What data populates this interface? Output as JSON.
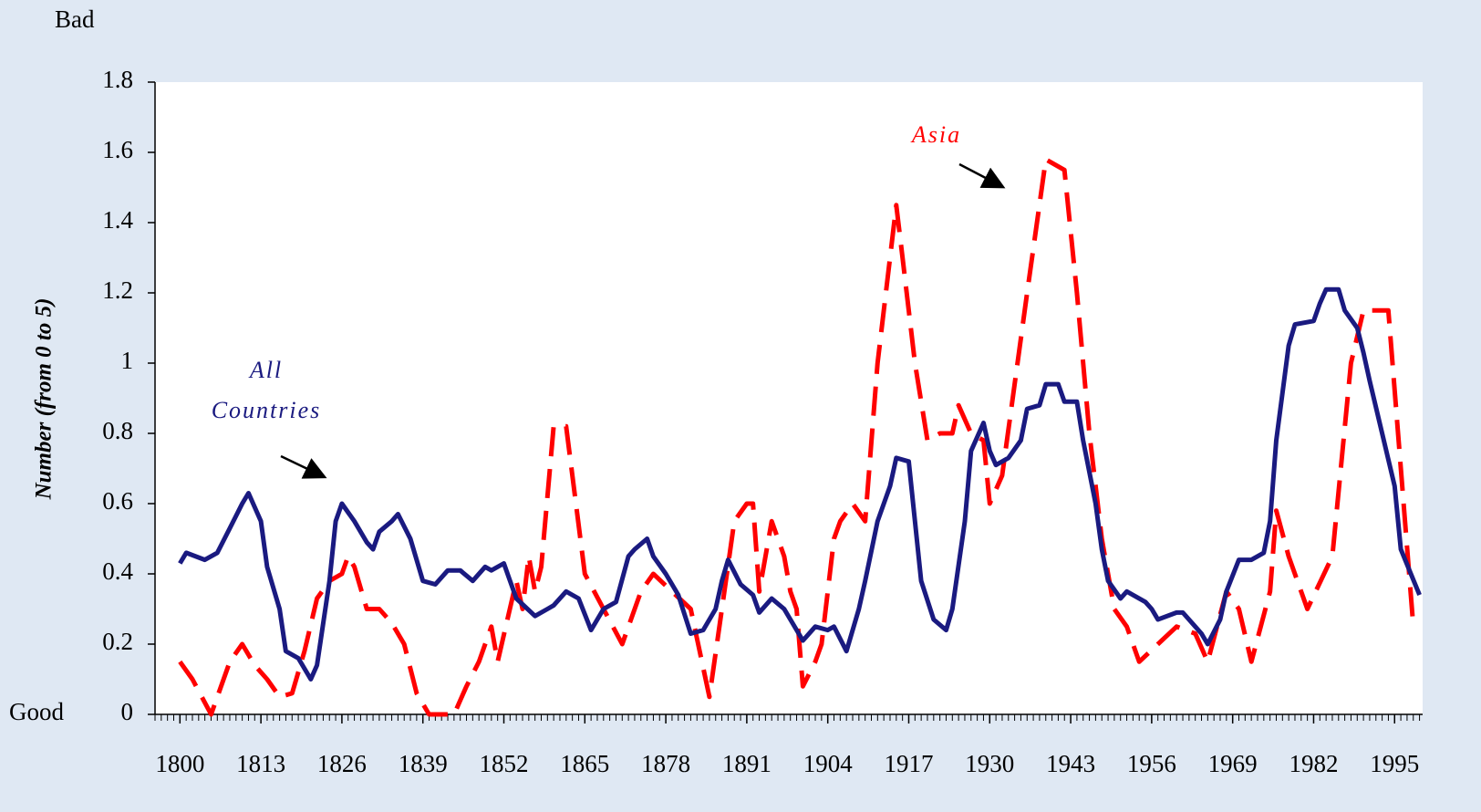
{
  "chart_data": {
    "type": "line",
    "y_axis_label": "Number (from 0 to 5)",
    "y_top_label": "Bad",
    "y_bottom_label": "Good",
    "annotations": [
      {
        "text": "Asia"
      },
      {
        "text": [
          "All",
          "Countries"
        ]
      }
    ],
    "xlim": [
      1796,
      1999.5
    ],
    "xticks": [
      1800,
      1813,
      1826,
      1839,
      1852,
      1865,
      1878,
      1891,
      1904,
      1917,
      1930,
      1943,
      1956,
      1969,
      1982,
      1995
    ],
    "ylim": [
      0,
      1.8
    ],
    "yticks": [
      0,
      0.2,
      0.4,
      0.6,
      0.8,
      1,
      1.2,
      1.4,
      1.6,
      1.8
    ],
    "series": [
      {
        "color": "#ff0000",
        "dashed": true,
        "x": [
          1800,
          1802,
          1805,
          1808,
          1810,
          1812,
          1814,
          1816,
          1818,
          1820,
          1822,
          1824,
          1826,
          1827,
          1828,
          1830,
          1832,
          1834,
          1836,
          1838,
          1840,
          1842,
          1844,
          1846,
          1848,
          1850,
          1851,
          1854,
          1855,
          1856,
          1857,
          1858,
          1860,
          1862,
          1865,
          1868,
          1871,
          1874,
          1876,
          1879,
          1882,
          1885,
          1887,
          1889,
          1891,
          1892,
          1893,
          1895,
          1897,
          1898,
          1899,
          1900,
          1902,
          1903,
          1905,
          1906,
          1908,
          1910,
          1912,
          1915,
          1916,
          1918,
          1920,
          1922,
          1924,
          1925,
          1927,
          1929,
          1930,
          1932,
          1936,
          1939,
          1942,
          1944,
          1946,
          1948,
          1950,
          1952,
          1954,
          1957,
          1960,
          1963,
          1965,
          1968,
          1970,
          1972,
          1975,
          1976,
          1978,
          1981,
          1985,
          1988,
          1990,
          1994,
          1998
        ],
        "values": [
          0.15,
          0.1,
          0,
          0.15,
          0.2,
          0.14,
          0.1,
          0.05,
          0.06,
          0.18,
          0.33,
          0.38,
          0.4,
          0.45,
          0.42,
          0.3,
          0.3,
          0.26,
          0.2,
          0.06,
          0,
          0,
          0,
          0.08,
          0.15,
          0.25,
          0.15,
          0.38,
          0.3,
          0.45,
          0.35,
          0.42,
          0.82,
          0.82,
          0.4,
          0.3,
          0.2,
          0.35,
          0.4,
          0.35,
          0.3,
          0.05,
          0.3,
          0.55,
          0.6,
          0.6,
          0.35,
          0.55,
          0.45,
          0.35,
          0.3,
          0.08,
          0.15,
          0.2,
          0.5,
          0.55,
          0.6,
          0.55,
          1.0,
          1.45,
          1.3,
          1.0,
          0.78,
          0.8,
          0.8,
          0.88,
          0.8,
          0.78,
          0.6,
          0.68,
          1.2,
          1.58,
          1.55,
          1.2,
          0.8,
          0.5,
          0.3,
          0.25,
          0.15,
          0.2,
          0.25,
          0.23,
          0.15,
          0.35,
          0.3,
          0.15,
          0.35,
          0.58,
          0.45,
          0.3,
          0.45,
          1.0,
          1.15,
          1.15,
          0.25
        ]
      },
      {
        "color": "#1a1a80",
        "dashed": false,
        "x": [
          1800,
          1801,
          1804,
          1806,
          1808,
          1810,
          1811,
          1813,
          1814,
          1816,
          1817,
          1819,
          1821,
          1822,
          1824,
          1825,
          1826,
          1828,
          1830,
          1831,
          1832,
          1834,
          1835,
          1837,
          1839,
          1841,
          1843,
          1845,
          1847,
          1849,
          1850,
          1852,
          1853,
          1854,
          1857,
          1859,
          1860,
          1862,
          1864,
          1866,
          1868,
          1870,
          1872,
          1873,
          1875,
          1876,
          1878,
          1880,
          1882,
          1884,
          1886,
          1887,
          1888,
          1890,
          1892,
          1893,
          1895,
          1897,
          1898,
          1900,
          1902,
          1904,
          1905,
          1907,
          1909,
          1910,
          1912,
          1914,
          1915,
          1917,
          1918,
          1919,
          1921,
          1923,
          1924,
          1926,
          1927,
          1929,
          1930,
          1931,
          1933,
          1935,
          1936,
          1938,
          1939,
          1941,
          1942,
          1944,
          1945,
          1947,
          1948,
          1949,
          1951,
          1952,
          1955,
          1956,
          1957,
          1960,
          1961,
          1963,
          1964,
          1965,
          1967,
          1968,
          1970,
          1972,
          1974,
          1975,
          1976,
          1978,
          1979,
          1982,
          1983,
          1984,
          1986,
          1987,
          1989,
          1990,
          1991,
          1993,
          1995,
          1996,
          1999
        ],
        "values": [
          0.43,
          0.46,
          0.44,
          0.46,
          0.53,
          0.6,
          0.63,
          0.55,
          0.42,
          0.3,
          0.18,
          0.16,
          0.1,
          0.14,
          0.38,
          0.55,
          0.6,
          0.55,
          0.49,
          0.47,
          0.52,
          0.55,
          0.57,
          0.5,
          0.38,
          0.37,
          0.41,
          0.41,
          0.38,
          0.42,
          0.41,
          0.43,
          0.38,
          0.33,
          0.28,
          0.3,
          0.31,
          0.35,
          0.33,
          0.24,
          0.3,
          0.32,
          0.45,
          0.47,
          0.5,
          0.45,
          0.4,
          0.34,
          0.23,
          0.24,
          0.3,
          0.38,
          0.44,
          0.37,
          0.34,
          0.29,
          0.33,
          0.3,
          0.27,
          0.21,
          0.25,
          0.24,
          0.25,
          0.18,
          0.3,
          0.38,
          0.55,
          0.65,
          0.73,
          0.72,
          0.55,
          0.38,
          0.27,
          0.24,
          0.3,
          0.55,
          0.75,
          0.83,
          0.75,
          0.71,
          0.73,
          0.78,
          0.87,
          0.88,
          0.94,
          0.94,
          0.89,
          0.89,
          0.78,
          0.6,
          0.47,
          0.38,
          0.33,
          0.35,
          0.32,
          0.3,
          0.27,
          0.29,
          0.29,
          0.25,
          0.23,
          0.2,
          0.27,
          0.35,
          0.44,
          0.44,
          0.46,
          0.55,
          0.78,
          1.05,
          1.11,
          1.12,
          1.17,
          1.21,
          1.21,
          1.15,
          1.1,
          1.03,
          0.95,
          0.8,
          0.65,
          0.47,
          0.34
        ]
      }
    ]
  }
}
